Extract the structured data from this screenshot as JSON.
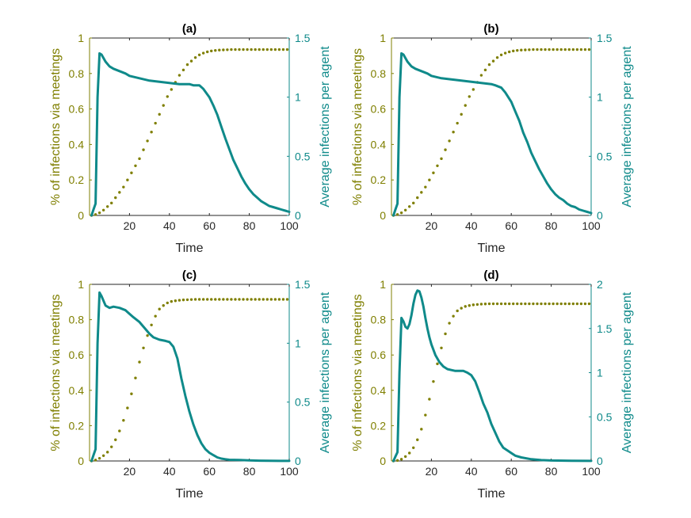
{
  "chart_data": [
    {
      "type": "line",
      "title": "(a)",
      "xlabel": "Time",
      "ylabel_left": "% of infections via meetings",
      "ylabel_right": "Average infections per agent",
      "xlim": [
        0,
        100
      ],
      "ylim_left": [
        0,
        1
      ],
      "ylim_right": [
        0,
        1.5
      ],
      "xticks": [
        "20",
        "40",
        "60",
        "80",
        "100"
      ],
      "yticks_left": [
        "0",
        "0.2",
        "0.4",
        "0.6",
        "0.8",
        "1"
      ],
      "yticks_right": [
        "0",
        "0.5",
        "1",
        "1.5"
      ],
      "series": [
        {
          "name": "% of infections via meetings",
          "axis": "left",
          "style": "dotted",
          "color": "#7f7f00",
          "x": [
            1,
            3,
            5,
            7,
            9,
            11,
            13,
            15,
            17,
            19,
            21,
            23,
            25,
            27,
            29,
            31,
            33,
            35,
            37,
            39,
            41,
            43,
            45,
            47,
            49,
            51,
            53,
            55,
            57,
            59,
            61,
            63,
            65,
            67,
            69,
            71,
            73,
            75,
            77,
            79,
            81,
            83,
            85,
            87,
            89,
            91,
            93,
            95,
            97,
            99
          ],
          "values": [
            0.0,
            0.005,
            0.015,
            0.03,
            0.05,
            0.07,
            0.1,
            0.13,
            0.16,
            0.2,
            0.24,
            0.28,
            0.32,
            0.37,
            0.42,
            0.47,
            0.52,
            0.57,
            0.62,
            0.67,
            0.71,
            0.75,
            0.79,
            0.82,
            0.85,
            0.87,
            0.89,
            0.905,
            0.915,
            0.922,
            0.927,
            0.93,
            0.932,
            0.933,
            0.934,
            0.935,
            0.935,
            0.935,
            0.935,
            0.935,
            0.935,
            0.935,
            0.935,
            0.935,
            0.935,
            0.935,
            0.935,
            0.935,
            0.935,
            0.935
          ]
        },
        {
          "name": "Average infections per agent",
          "axis": "right",
          "style": "solid",
          "color": "#0f8a8a",
          "x": [
            1,
            2,
            3,
            4,
            5,
            6,
            8,
            10,
            12,
            15,
            18,
            20,
            25,
            30,
            35,
            40,
            45,
            50,
            52,
            55,
            57,
            60,
            62,
            64,
            66,
            68,
            70,
            72,
            74,
            76,
            78,
            80,
            82,
            84,
            86,
            88,
            90,
            92,
            94,
            96,
            98,
            100
          ],
          "values": [
            0.0,
            0.05,
            0.1,
            1.0,
            1.37,
            1.36,
            1.3,
            1.26,
            1.24,
            1.22,
            1.2,
            1.18,
            1.16,
            1.14,
            1.13,
            1.12,
            1.11,
            1.11,
            1.1,
            1.1,
            1.07,
            1.0,
            0.93,
            0.85,
            0.75,
            0.65,
            0.56,
            0.47,
            0.4,
            0.33,
            0.27,
            0.22,
            0.18,
            0.15,
            0.12,
            0.1,
            0.08,
            0.07,
            0.06,
            0.05,
            0.04,
            0.03
          ]
        }
      ]
    },
    {
      "type": "line",
      "title": "(b)",
      "xlabel": "Time",
      "ylabel_left": "% of infections via meetings",
      "ylabel_right": "Average infections per agent",
      "xlim": [
        0,
        100
      ],
      "ylim_left": [
        0,
        1
      ],
      "ylim_right": [
        0,
        1.5
      ],
      "xticks": [
        "20",
        "40",
        "60",
        "80",
        "100"
      ],
      "yticks_left": [
        "0",
        "0.2",
        "0.4",
        "0.6",
        "0.8",
        "1"
      ],
      "yticks_right": [
        "0",
        "0.5",
        "1",
        "1.5"
      ],
      "series": [
        {
          "name": "% of infections via meetings",
          "axis": "left",
          "style": "dotted",
          "color": "#7f7f00",
          "x": [
            1,
            3,
            5,
            7,
            9,
            11,
            13,
            15,
            17,
            19,
            21,
            23,
            25,
            27,
            29,
            31,
            33,
            35,
            37,
            39,
            41,
            43,
            45,
            47,
            49,
            51,
            53,
            55,
            57,
            59,
            61,
            63,
            65,
            67,
            69,
            71,
            73,
            75,
            77,
            79,
            81,
            83,
            85,
            87,
            89,
            91,
            93,
            95,
            97,
            99
          ],
          "values": [
            0.0,
            0.005,
            0.015,
            0.03,
            0.05,
            0.07,
            0.1,
            0.13,
            0.16,
            0.2,
            0.24,
            0.28,
            0.32,
            0.37,
            0.42,
            0.47,
            0.52,
            0.57,
            0.62,
            0.67,
            0.71,
            0.75,
            0.79,
            0.82,
            0.85,
            0.87,
            0.89,
            0.905,
            0.915,
            0.922,
            0.927,
            0.93,
            0.932,
            0.933,
            0.934,
            0.935,
            0.935,
            0.935,
            0.935,
            0.935,
            0.935,
            0.935,
            0.935,
            0.935,
            0.935,
            0.935,
            0.935,
            0.935,
            0.935,
            0.935
          ]
        },
        {
          "name": "Average infections per agent",
          "axis": "right",
          "style": "solid",
          "color": "#0f8a8a",
          "x": [
            1,
            2,
            3,
            4,
            5,
            6,
            8,
            10,
            12,
            15,
            18,
            20,
            25,
            30,
            35,
            40,
            45,
            50,
            52,
            55,
            57,
            60,
            62,
            64,
            66,
            68,
            70,
            72,
            74,
            76,
            78,
            80,
            82,
            84,
            86,
            88,
            90,
            92,
            94,
            96,
            98,
            100
          ],
          "values": [
            0.0,
            0.05,
            0.1,
            1.0,
            1.37,
            1.36,
            1.3,
            1.26,
            1.24,
            1.22,
            1.2,
            1.18,
            1.16,
            1.15,
            1.14,
            1.13,
            1.12,
            1.11,
            1.1,
            1.08,
            1.04,
            0.96,
            0.88,
            0.8,
            0.7,
            0.62,
            0.53,
            0.46,
            0.39,
            0.33,
            0.27,
            0.22,
            0.18,
            0.15,
            0.13,
            0.1,
            0.08,
            0.07,
            0.05,
            0.04,
            0.03,
            0.02
          ]
        }
      ]
    },
    {
      "type": "line",
      "title": "(c)",
      "xlabel": "Time",
      "ylabel_left": "% of infections via meetings",
      "ylabel_right": "Average infections per agent",
      "xlim": [
        0,
        100
      ],
      "ylim_left": [
        0,
        1
      ],
      "ylim_right": [
        0,
        1.5
      ],
      "xticks": [
        "20",
        "40",
        "60",
        "80",
        "100"
      ],
      "yticks_left": [
        "0",
        "0.2",
        "0.4",
        "0.6",
        "0.8",
        "1"
      ],
      "yticks_right": [
        "0",
        "0.5",
        "1",
        "1.5"
      ],
      "series": [
        {
          "name": "% of infections via meetings",
          "axis": "left",
          "style": "dotted",
          "color": "#7f7f00",
          "x": [
            1,
            3,
            5,
            7,
            9,
            11,
            13,
            15,
            17,
            19,
            21,
            23,
            25,
            27,
            29,
            31,
            33,
            35,
            37,
            39,
            41,
            43,
            45,
            47,
            49,
            51,
            53,
            55,
            57,
            59,
            61,
            63,
            65,
            67,
            69,
            71,
            73,
            75,
            77,
            79,
            81,
            83,
            85,
            87,
            89,
            91,
            93,
            95,
            97,
            99
          ],
          "values": [
            0.0,
            0.005,
            0.015,
            0.03,
            0.05,
            0.08,
            0.12,
            0.17,
            0.23,
            0.3,
            0.38,
            0.47,
            0.56,
            0.64,
            0.71,
            0.77,
            0.82,
            0.86,
            0.88,
            0.895,
            0.903,
            0.907,
            0.91,
            0.912,
            0.913,
            0.914,
            0.915,
            0.915,
            0.915,
            0.915,
            0.915,
            0.915,
            0.915,
            0.915,
            0.915,
            0.915,
            0.915,
            0.915,
            0.915,
            0.915,
            0.915,
            0.915,
            0.915,
            0.915,
            0.915,
            0.915,
            0.915,
            0.915,
            0.915,
            0.915
          ]
        },
        {
          "name": "Average infections per agent",
          "axis": "right",
          "style": "solid",
          "color": "#0f8a8a",
          "x": [
            1,
            2,
            3,
            4,
            5,
            6,
            8,
            10,
            12,
            15,
            18,
            20,
            22,
            25,
            28,
            30,
            32,
            35,
            38,
            40,
            42,
            44,
            46,
            48,
            50,
            52,
            54,
            56,
            58,
            60,
            62,
            64,
            66,
            68,
            70,
            75,
            80,
            85,
            90,
            95,
            100
          ],
          "values": [
            0.0,
            0.05,
            0.1,
            1.0,
            1.43,
            1.4,
            1.32,
            1.3,
            1.31,
            1.3,
            1.28,
            1.25,
            1.22,
            1.18,
            1.12,
            1.08,
            1.05,
            1.03,
            1.02,
            1.01,
            0.97,
            0.87,
            0.7,
            0.55,
            0.42,
            0.31,
            0.22,
            0.15,
            0.1,
            0.07,
            0.05,
            0.03,
            0.02,
            0.015,
            0.01,
            0.008,
            0.005,
            0.003,
            0.002,
            0.001,
            0.001
          ]
        }
      ]
    },
    {
      "type": "line",
      "title": "(d)",
      "xlabel": "Time",
      "ylabel_left": "% of infections via meetings",
      "ylabel_right": "Average infections per agent",
      "xlim": [
        0,
        100
      ],
      "ylim_left": [
        0,
        1
      ],
      "ylim_right": [
        0,
        2
      ],
      "xticks": [
        "20",
        "40",
        "60",
        "80",
        "100"
      ],
      "yticks_left": [
        "0",
        "0.2",
        "0.4",
        "0.6",
        "0.8",
        "1"
      ],
      "yticks_right": [
        "0",
        "0.5",
        "1",
        "1.5",
        "2"
      ],
      "series": [
        {
          "name": "% of infections via meetings",
          "axis": "left",
          "style": "dotted",
          "color": "#7f7f00",
          "x": [
            1,
            3,
            5,
            7,
            9,
            11,
            13,
            15,
            17,
            19,
            21,
            23,
            25,
            27,
            29,
            31,
            33,
            35,
            37,
            39,
            41,
            43,
            45,
            47,
            49,
            51,
            53,
            55,
            57,
            59,
            61,
            63,
            65,
            67,
            69,
            71,
            73,
            75,
            77,
            79,
            81,
            83,
            85,
            87,
            89,
            91,
            93,
            95,
            97,
            99
          ],
          "values": [
            0.0,
            0.003,
            0.01,
            0.025,
            0.045,
            0.075,
            0.12,
            0.18,
            0.26,
            0.35,
            0.45,
            0.55,
            0.64,
            0.72,
            0.78,
            0.82,
            0.85,
            0.865,
            0.875,
            0.88,
            0.884,
            0.886,
            0.888,
            0.889,
            0.89,
            0.89,
            0.89,
            0.89,
            0.89,
            0.89,
            0.89,
            0.89,
            0.89,
            0.89,
            0.89,
            0.89,
            0.89,
            0.89,
            0.89,
            0.89,
            0.89,
            0.89,
            0.89,
            0.89,
            0.89,
            0.89,
            0.89,
            0.89,
            0.89,
            0.89
          ]
        },
        {
          "name": "Average infections per agent",
          "axis": "right",
          "style": "solid",
          "color": "#0f8a8a",
          "x": [
            1,
            2,
            3,
            4,
            5,
            6,
            7,
            8,
            9,
            10,
            11,
            12,
            13,
            14,
            15,
            16,
            17,
            18,
            19,
            20,
            22,
            24,
            26,
            28,
            30,
            32,
            34,
            36,
            38,
            40,
            42,
            44,
            46,
            48,
            50,
            52,
            54,
            56,
            58,
            60,
            62,
            65,
            70,
            75,
            80,
            90,
            100
          ],
          "values": [
            0.0,
            0.05,
            0.1,
            1.0,
            1.62,
            1.58,
            1.52,
            1.5,
            1.55,
            1.65,
            1.78,
            1.88,
            1.93,
            1.92,
            1.85,
            1.75,
            1.62,
            1.5,
            1.4,
            1.32,
            1.2,
            1.12,
            1.07,
            1.04,
            1.03,
            1.02,
            1.02,
            1.02,
            1.0,
            0.97,
            0.9,
            0.78,
            0.65,
            0.55,
            0.42,
            0.32,
            0.22,
            0.15,
            0.12,
            0.09,
            0.06,
            0.04,
            0.02,
            0.01,
            0.005,
            0.002,
            0.001
          ]
        }
      ]
    }
  ]
}
